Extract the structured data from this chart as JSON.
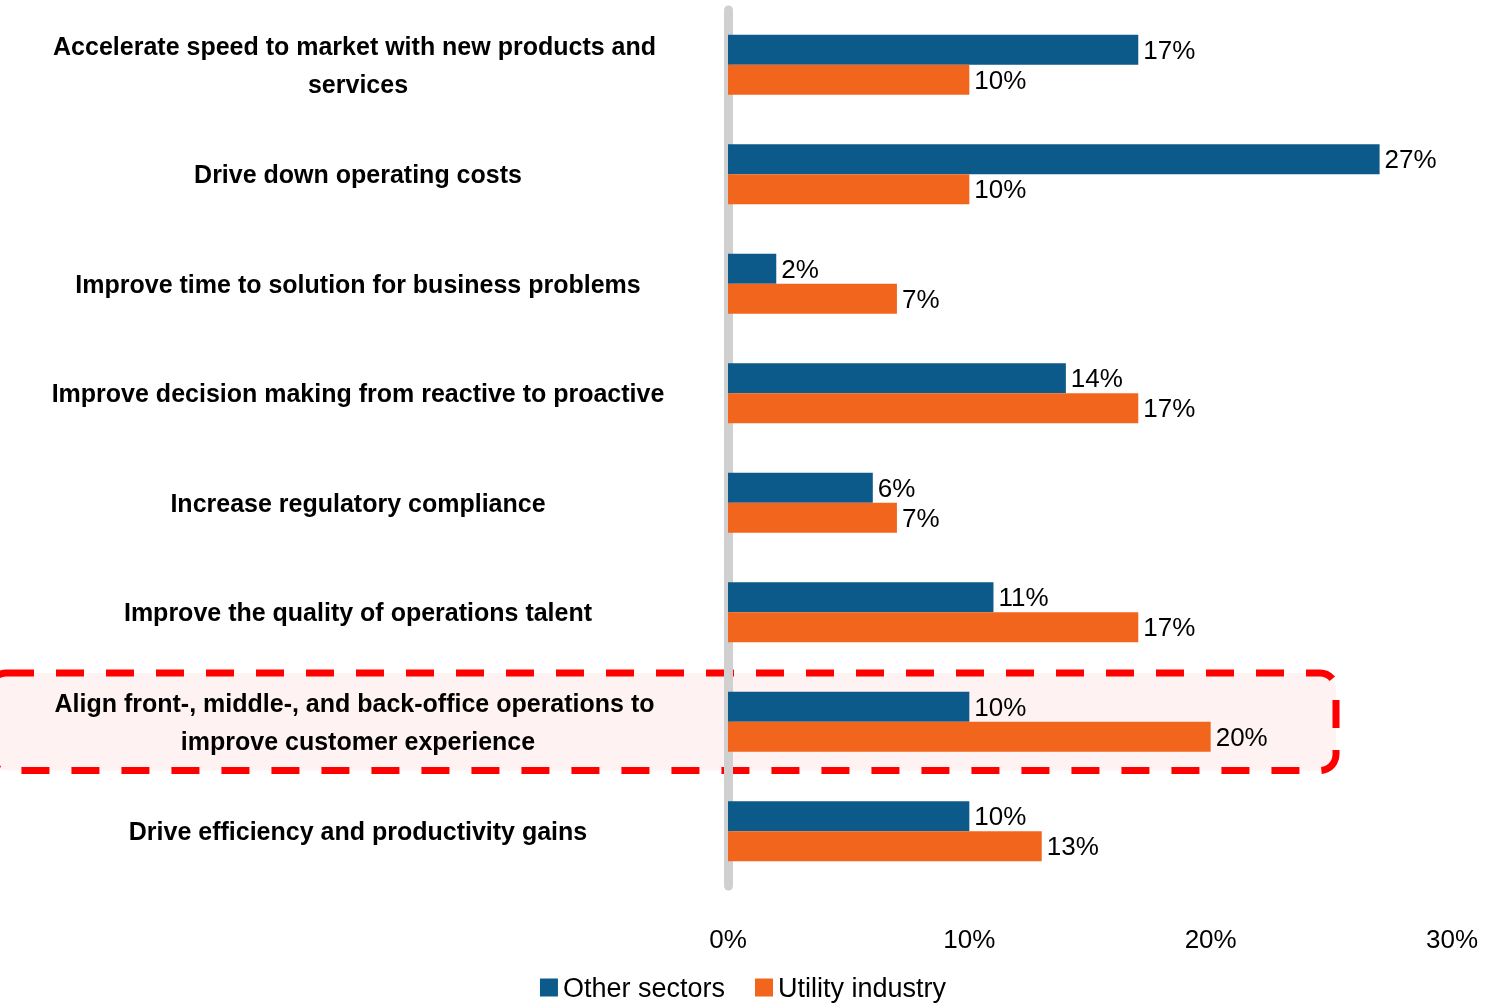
{
  "chart_data": {
    "type": "bar",
    "orientation": "horizontal",
    "categories": [
      "Accelerate speed to market with new products and services",
      "Drive down operating costs",
      "Improve time to solution for business problems",
      "Improve decision making from reactive to proactive",
      "Increase regulatory compliance",
      "Improve the quality of operations talent",
      "Align front-, middle-, and back-office operations to improve customer experience",
      "Drive efficiency and productivity gains"
    ],
    "series": [
      {
        "name": "Other sectors",
        "color": "#0b5a8a",
        "values": [
          17,
          27,
          2,
          14,
          6,
          11,
          10,
          10
        ],
        "value_labels": [
          "17%",
          "27%",
          "2%",
          "14%",
          "6%",
          "11%",
          "10%",
          "10%"
        ]
      },
      {
        "name": "Utility industry",
        "color": "#f2651c",
        "values": [
          10,
          10,
          7,
          17,
          7,
          17,
          20,
          13
        ],
        "value_labels": [
          "10%",
          "10%",
          "7%",
          "17%",
          "7%",
          "17%",
          "20%",
          "13%"
        ]
      }
    ],
    "xlim": [
      0,
      30
    ],
    "xticks": [
      {
        "value": 0,
        "label": "0%"
      },
      {
        "value": 10,
        "label": "10%"
      },
      {
        "value": 20,
        "label": "20%"
      },
      {
        "value": 30,
        "label": "30%"
      }
    ],
    "grid": false,
    "legend": "bottom",
    "bands": [
      {
        "axis": "y",
        "from": "Align front-, middle-, and back-office operations to improve customer experience",
        "to": "Align front-, middle-, and back-office operations to improve customer experience",
        "color": "#ff0000"
      }
    ]
  }
}
